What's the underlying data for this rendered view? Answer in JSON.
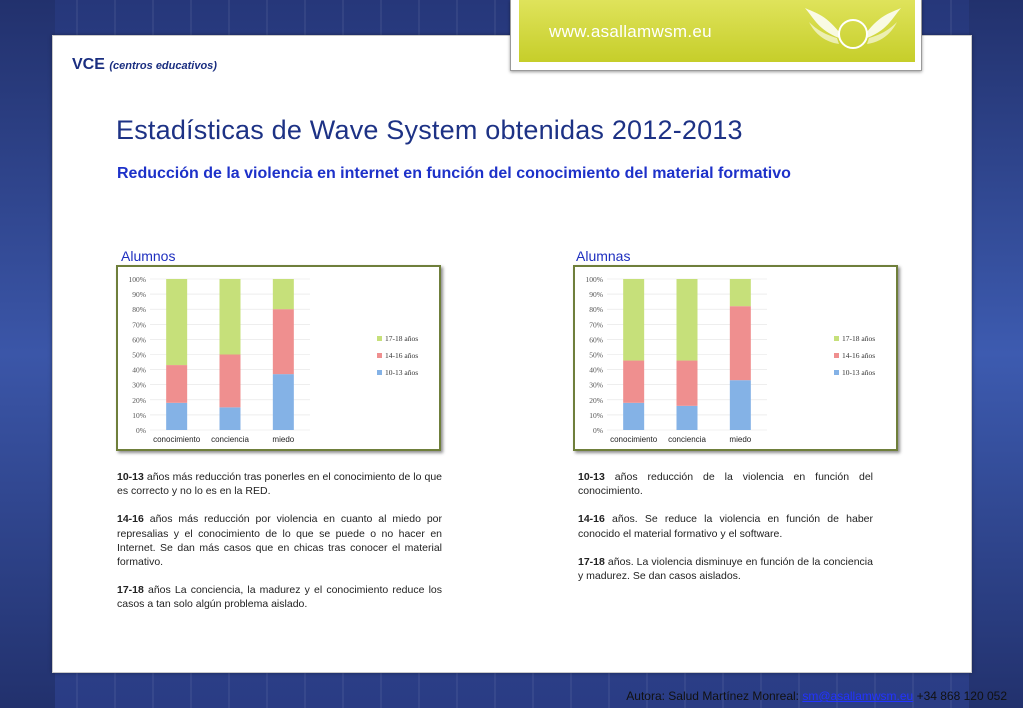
{
  "banner": {
    "url": "www.asallamwsm.eu"
  },
  "header": {
    "brand": "VCE",
    "brand_sub": "(centros educativos)"
  },
  "title": "Estadísticas de Wave System obtenidas 2012-2013",
  "subtitle": "Reducción de la violencia en internet en función del conocimiento del material formativo",
  "colors": {
    "green": "#c6e07a",
    "red": "#ef8f8f",
    "blue": "#84b2e6",
    "title": "#1d3285",
    "subtitle": "#1d31c9"
  },
  "chart_data": [
    {
      "type": "bar",
      "stacked": true,
      "title": "Alumnos",
      "categories": [
        "conocimiento",
        "conciencia",
        "miedo"
      ],
      "ylim": [
        0,
        100
      ],
      "yticks": [
        "0%",
        "10%",
        "20%",
        "30%",
        "40%",
        "50%",
        "60%",
        "70%",
        "80%",
        "90%",
        "100%"
      ],
      "legend_position": "right",
      "series": [
        {
          "name": "10-13 años",
          "values": [
            18,
            15,
            37
          ],
          "color": "#84b2e6"
        },
        {
          "name": "14-16 años",
          "values": [
            25,
            35,
            43
          ],
          "color": "#ef8f8f"
        },
        {
          "name": "17-18 años",
          "values": [
            57,
            50,
            20
          ],
          "color": "#c6e07a"
        }
      ]
    },
    {
      "type": "bar",
      "stacked": true,
      "title": "Alumnas",
      "categories": [
        "conocimiento",
        "conciencia",
        "miedo"
      ],
      "ylim": [
        0,
        100
      ],
      "yticks": [
        "0%",
        "10%",
        "20%",
        "30%",
        "40%",
        "50%",
        "60%",
        "70%",
        "80%",
        "90%",
        "100%"
      ],
      "legend_position": "right",
      "series": [
        {
          "name": "10-13 años",
          "values": [
            18,
            16,
            33
          ],
          "color": "#84b2e6"
        },
        {
          "name": "14-16 años",
          "values": [
            28,
            30,
            49
          ],
          "color": "#ef8f8f"
        },
        {
          "name": "17-18 años",
          "values": [
            54,
            54,
            18
          ],
          "color": "#c6e07a"
        }
      ]
    }
  ],
  "left_text": [
    {
      "lead": "10-13",
      "body": " años más reducción tras ponerles en el conocimiento de lo que es correcto y no lo es en la RED."
    },
    {
      "lead": "14-16",
      "body": " años más reducción por violencia en cuanto al miedo por represalias y el conocimiento de lo que se puede o no hacer en Internet. Se dan más casos que en chicas tras conocer el material formativo."
    },
    {
      "lead": "17-18",
      "body": " años La conciencia, la madurez y el conocimiento reduce los casos a tan solo algún problema aislado."
    }
  ],
  "right_text": [
    {
      "lead": "10-13",
      "body": " años reducción de la violencia en función del conocimiento."
    },
    {
      "lead": "14-16",
      "body": " años. Se reduce la violencia en función de haber conocido el material formativo y el software."
    },
    {
      "lead": "17-18",
      "body": " años. La violencia disminuye en función de la conciencia y madurez. Se dan casos aislados."
    }
  ],
  "footer": {
    "prefix": "Autora: Salud Martínez Monreal: ",
    "email": "sm@asallamwsm.eu",
    "phone": " +34 868 120 052"
  }
}
